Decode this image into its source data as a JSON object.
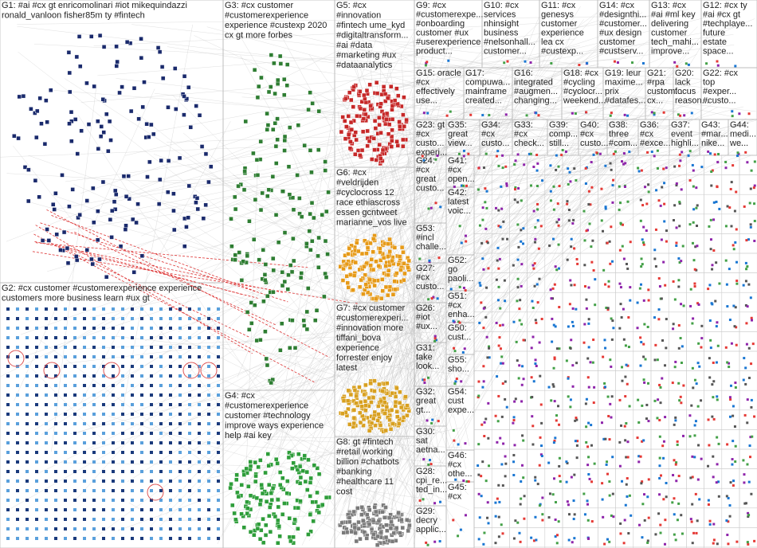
{
  "groups": [
    {
      "label": [
        "G1: #ai #cx gt enricomolinari #iot mikequindazzi",
        "ronald_vanloon fisher85m ty #fintech"
      ]
    },
    {
      "label": [
        "G2: #cx customer #customerexperience experience",
        "customers more business learn #ux gt"
      ]
    },
    {
      "label": [
        "G3: #cx customer",
        "#customerexperience",
        "experience #custexp 2020",
        "cx gt more forbes"
      ]
    },
    {
      "label": [
        "G4: #cx",
        "#customerexperience",
        "customer #technology",
        "improve ways experience",
        "help #ai key"
      ]
    },
    {
      "label": [
        "G5: #cx",
        "#innovation",
        "#fintech ume_kyd",
        "#digitaltransform...",
        "#ai #data",
        "#marketing #ux",
        "#dataanalytics"
      ]
    },
    {
      "label": [
        "G6: #cx",
        "#veldrijden",
        "#cyclocross 12",
        "race ethiascross",
        "essen gcntweet",
        "marianne_vos live"
      ]
    },
    {
      "label": [
        "G7: #cx customer",
        "#customerexperi...",
        "#innovation more",
        "tiffani_bova",
        "experience",
        "forrester enjoy",
        "latest"
      ]
    },
    {
      "label": [
        "G8: gt #fintech",
        "#retail working",
        "billion #chatbots",
        "#banking",
        "#healthcare 11",
        "cost"
      ]
    },
    {
      "label": [
        "G9: #cx",
        "#customerexpe...",
        "#onboarding",
        "customer #ux",
        "#userexperience",
        "product..."
      ]
    },
    {
      "label": [
        "G10: #cx",
        "services",
        "nhinsight",
        "business",
        "#nelsonhall...",
        "customer..."
      ]
    },
    {
      "label": [
        "G11: #cx",
        "genesys",
        "customer",
        "experience",
        "lea cx",
        "#custexp..."
      ]
    },
    {
      "label": [
        "G14: #cx",
        "#designthi...",
        "#customer...",
        "#ux design",
        "customer",
        "#custserv..."
      ]
    },
    {
      "label": [
        "G13: #cx",
        "#ai #ml key",
        "delivering",
        "customer",
        "tech_mahi...",
        "improve..."
      ]
    },
    {
      "label": [
        "G12: #cx ty",
        "#ai #cx gt",
        "#techplaye...",
        "future",
        "estate",
        "space..."
      ]
    },
    {
      "label": [
        "G15: oracle",
        "#cx",
        "effectively",
        "use..."
      ]
    },
    {
      "label": [
        "G17:",
        "compuwa...",
        "mainframe",
        "created..."
      ]
    },
    {
      "label": [
        "G16:",
        "integrated",
        "#augmen...",
        "changing..."
      ]
    },
    {
      "label": [
        "G18: #cx",
        "#cycling",
        "#cyclocr...",
        "weekend..."
      ]
    },
    {
      "label": [
        "G19: leur",
        "maxime...",
        "prix",
        "#datafes..."
      ]
    },
    {
      "label": [
        "G21:",
        "#rpa",
        "custom...",
        "cx..."
      ]
    },
    {
      "label": [
        "G20:",
        "lack",
        "focus",
        "reason..."
      ]
    },
    {
      "label": [
        "G22: #cx",
        "top",
        "#exper...",
        "#custo..."
      ]
    },
    {
      "label": [
        "G23: gt",
        "#cx",
        "custo...",
        "experi..."
      ]
    },
    {
      "label": [
        "G35:",
        "great",
        "view..."
      ]
    },
    {
      "label": [
        "G34:",
        "#cx",
        "custo..."
      ]
    },
    {
      "label": [
        "G33:",
        "#cx",
        "check..."
      ]
    },
    {
      "label": [
        "G39:",
        "comp...",
        "still..."
      ]
    },
    {
      "label": [
        "G40:",
        "#cx",
        "custo..."
      ]
    },
    {
      "label": [
        "G38:",
        "three",
        "#com..."
      ]
    },
    {
      "label": [
        "G36:",
        "#cx",
        "#exce..."
      ]
    },
    {
      "label": [
        "G37:",
        "event",
        "highli..."
      ]
    },
    {
      "label": [
        "G43:",
        "#mar...",
        "nike..."
      ]
    },
    {
      "label": [
        "G44:",
        "medi...",
        "we..."
      ]
    },
    {
      "label": [
        "G24:",
        "#cx",
        "great",
        "custo..."
      ]
    },
    {
      "label": [
        "G53:",
        "#incl",
        "challe..."
      ]
    },
    {
      "label": [
        "G27:",
        "#cx",
        "custo..."
      ]
    },
    {
      "label": [
        "G26:",
        "#iot",
        "#ux..."
      ]
    },
    {
      "label": [
        "G31:",
        "take",
        "look..."
      ]
    },
    {
      "label": [
        "G32:",
        "great",
        "gt..."
      ]
    },
    {
      "label": [
        "G30:",
        "sat",
        "aetna..."
      ]
    },
    {
      "label": [
        "G28:",
        "cpi_re...",
        "ted_in..."
      ]
    },
    {
      "label": [
        "G29:",
        "decry",
        "applic..."
      ]
    },
    {
      "label": [
        "G41:",
        "#cx",
        "open..."
      ]
    },
    {
      "label": [
        "G42:",
        "latest",
        "voic..."
      ]
    },
    {
      "label": [
        "G52:",
        "go",
        "paoli..."
      ]
    },
    {
      "label": [
        "G51:",
        "#cx",
        "enha..."
      ]
    },
    {
      "label": [
        "G50:",
        "cust..."
      ]
    },
    {
      "label": [
        "G55:",
        "sho..."
      ]
    },
    {
      "label": [
        "G54:",
        "cust",
        "expe..."
      ]
    },
    {
      "label": [
        "G46:",
        "#cx",
        "othe..."
      ]
    },
    {
      "label": [
        "G45:",
        "#cx"
      ]
    }
  ]
}
